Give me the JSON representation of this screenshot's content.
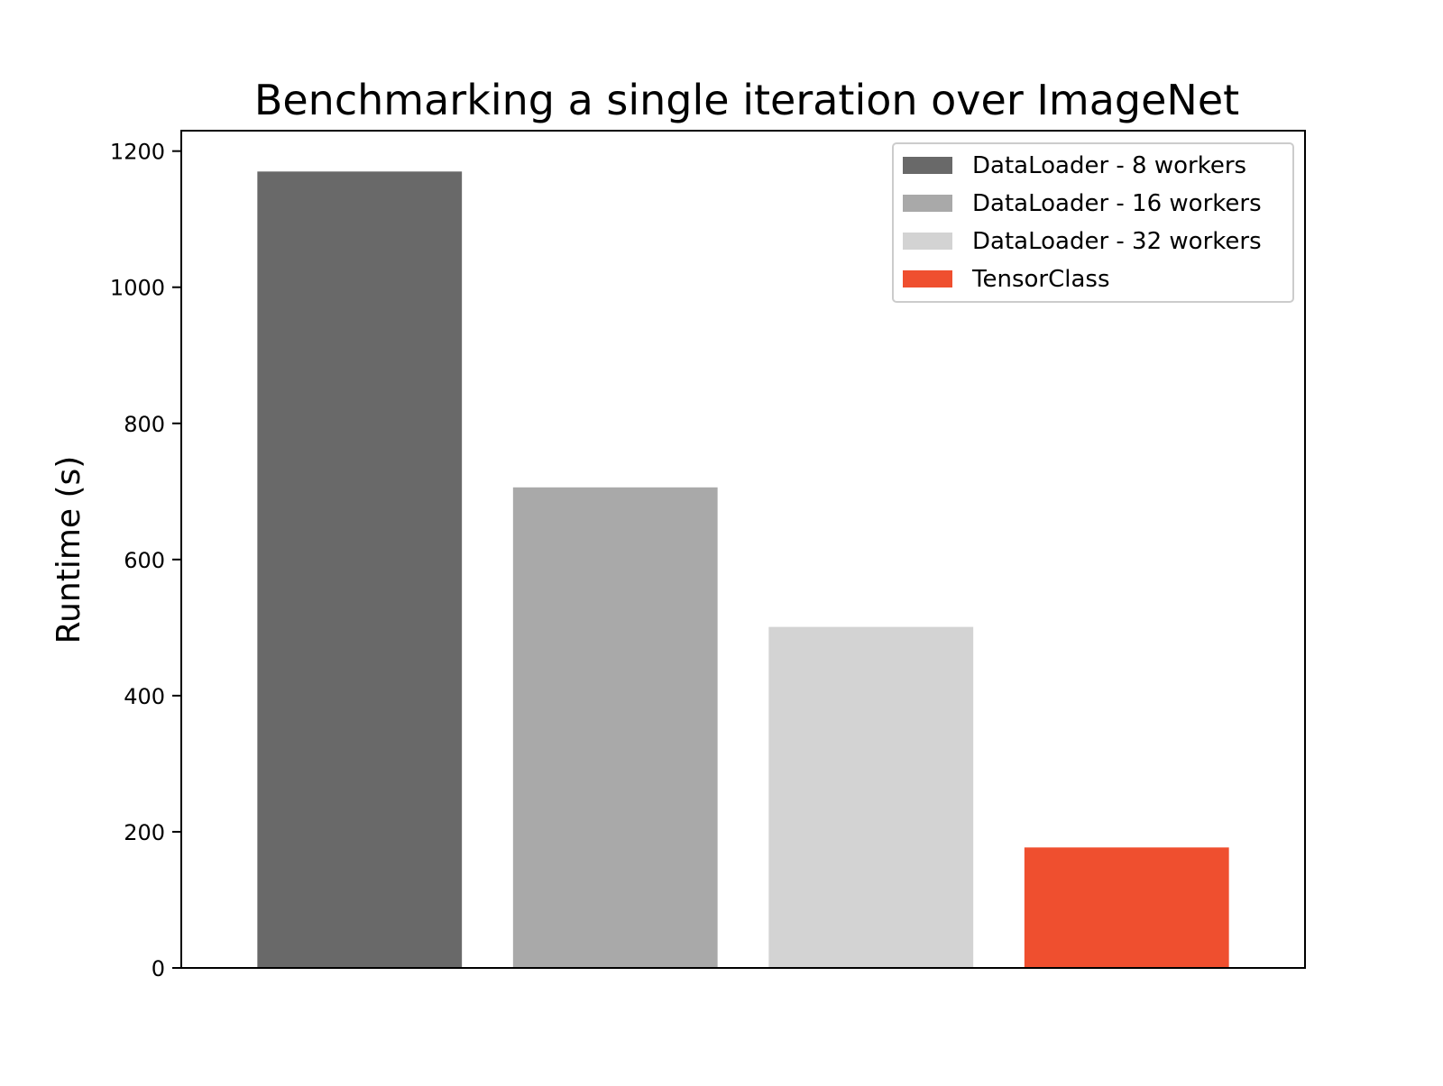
{
  "chart_data": {
    "type": "bar",
    "title": "Benchmarking a single iteration over ImageNet",
    "xlabel": "",
    "ylabel": "Runtime (s)",
    "ylim": [
      0,
      1230
    ],
    "yticks": [
      0,
      200,
      400,
      600,
      800,
      1000,
      1200
    ],
    "grid": false,
    "legend_position": "top-right",
    "series": [
      {
        "name": "DataLoader - 8 workers",
        "value": 1170,
        "color": "#696969"
      },
      {
        "name": "DataLoader - 16 workers",
        "value": 706,
        "color": "#a9a9a9"
      },
      {
        "name": "DataLoader - 32 workers",
        "value": 501,
        "color": "#d3d3d3"
      },
      {
        "name": "TensorClass",
        "value": 177,
        "color": "#ef4f2f"
      }
    ]
  }
}
